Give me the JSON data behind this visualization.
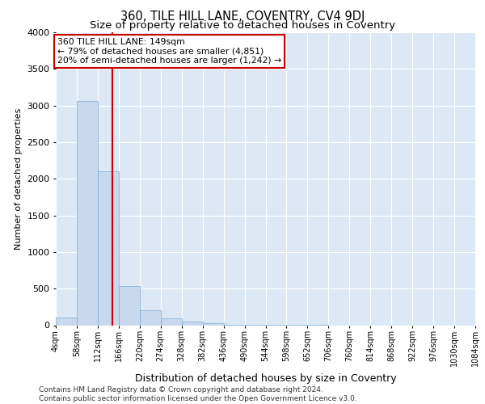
{
  "title": "360, TILE HILL LANE, COVENTRY, CV4 9DJ",
  "subtitle": "Size of property relative to detached houses in Coventry",
  "xlabel": "Distribution of detached houses by size in Coventry",
  "ylabel": "Number of detached properties",
  "footer_line1": "Contains HM Land Registry data © Crown copyright and database right 2024.",
  "footer_line2": "Contains public sector information licensed under the Open Government Licence v3.0.",
  "bar_color": "#c8d9ee",
  "bar_edge_color": "#7aadd4",
  "plot_bg_color": "#dce8f5",
  "annotation_text_line1": "360 TILE HILL LANE: 149sqm",
  "annotation_text_line2": "← 79% of detached houses are smaller (4,851)",
  "annotation_text_line3": "20% of semi-detached houses are larger (1,242) →",
  "annotation_box_color": "#cc0000",
  "vline_color": "#cc0000",
  "vline_x": 149,
  "bin_edges": [
    4,
    58,
    112,
    166,
    220,
    274,
    328,
    382,
    436,
    490,
    544,
    598,
    652,
    706,
    760,
    814,
    868,
    922,
    976,
    1030,
    1084
  ],
  "bar_heights": [
    100,
    3060,
    2100,
    530,
    200,
    90,
    50,
    30,
    10,
    10,
    5,
    5,
    3,
    0,
    0,
    0,
    0,
    0,
    0,
    0
  ],
  "ylim": [
    0,
    4000
  ],
  "yticks": [
    0,
    500,
    1000,
    1500,
    2000,
    2500,
    3000,
    3500,
    4000
  ],
  "grid_color": "#ffffff",
  "title_fontsize": 10.5,
  "subtitle_fontsize": 9.5,
  "ylabel_fontsize": 8,
  "xlabel_fontsize": 9,
  "tick_label_fontsize": 7,
  "footer_fontsize": 6.5
}
